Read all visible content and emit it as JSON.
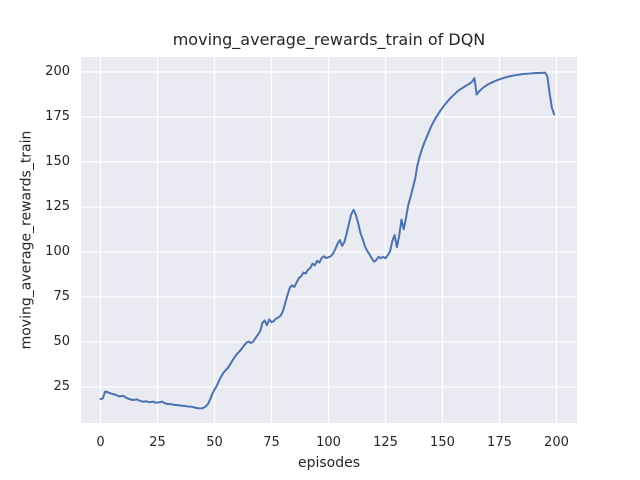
{
  "chart_data": {
    "type": "line",
    "title": "moving_average_rewards_train of DQN",
    "xlabel": "episodes",
    "ylabel": "moving_average_rewards_train",
    "xlim": [
      -8.55,
      209.0
    ],
    "ylim": [
      5.0,
      208.3
    ],
    "x_ticks": [
      0,
      25,
      50,
      75,
      100,
      125,
      150,
      175,
      200
    ],
    "y_ticks": [
      25,
      50,
      75,
      100,
      125,
      150,
      175,
      200
    ],
    "grid": true,
    "legend": "none",
    "style": {
      "axes_background": "#EAEAF2",
      "grid_color": "#FFFFFF",
      "line_color": "#4C72B0",
      "text_color": "#262626",
      "line_width": 2
    },
    "series": [
      {
        "name": "DQN",
        "x_start": 0,
        "x_step": 1,
        "values": [
          18.3,
          18.6,
          22.4,
          22.2,
          21.6,
          21.2,
          20.9,
          20.5,
          19.8,
          19.9,
          20.1,
          19.2,
          18.6,
          18.2,
          17.8,
          17.9,
          18.1,
          17.5,
          17.0,
          16.8,
          17.1,
          16.6,
          16.6,
          16.9,
          16.3,
          16.4,
          16.5,
          16.9,
          16.1,
          15.7,
          15.5,
          15.5,
          15.1,
          15.0,
          14.9,
          14.7,
          14.5,
          14.5,
          14.2,
          14.1,
          14.0,
          13.7,
          13.4,
          13.2,
          13.1,
          13.3,
          14.0,
          15.3,
          17.8,
          21.0,
          23.6,
          25.6,
          28.5,
          31.0,
          33.0,
          34.5,
          35.8,
          37.8,
          40.0,
          41.8,
          43.5,
          44.8,
          46.4,
          48.1,
          49.6,
          50.2,
          49.4,
          50.2,
          52.2,
          54.0,
          55.8,
          60.5,
          62.0,
          59.3,
          62.6,
          61.0,
          61.6,
          63.0,
          63.6,
          64.6,
          67.0,
          71.5,
          76.0,
          80.0,
          81.5,
          80.6,
          83.0,
          85.5,
          86.5,
          88.6,
          88.0,
          90.1,
          91.1,
          93.5,
          92.6,
          95.1,
          94.1,
          96.6,
          97.6,
          96.6,
          97.1,
          97.6,
          99.1,
          101.6,
          104.6,
          106.6,
          103.4,
          105.6,
          110.5,
          116.0,
          121.0,
          123.4,
          120.6,
          116.1,
          110.6,
          107.1,
          103.1,
          100.6,
          98.6,
          96.4,
          94.6,
          95.6,
          97.4,
          96.5,
          97.3,
          96.5,
          98.3,
          100.3,
          106.1,
          109.4,
          102.6,
          109.0,
          118.0,
          112.6,
          119.0,
          126.1,
          130.6,
          135.6,
          140.6,
          148.1,
          153.1,
          157.1,
          160.6,
          163.6,
          166.6,
          169.6,
          172.1,
          174.4,
          176.4,
          178.3,
          180.1,
          181.8,
          183.3,
          184.8,
          186.1,
          187.3,
          188.5,
          189.6,
          190.5,
          191.3,
          192.1,
          192.9,
          193.6,
          194.6,
          196.6,
          187.5,
          189.1,
          190.3,
          191.4,
          192.3,
          193.1,
          193.7,
          194.3,
          194.9,
          195.4,
          195.9,
          196.3,
          196.7,
          197.1,
          197.4,
          197.7,
          198.0,
          198.2,
          198.4,
          198.6,
          198.8,
          198.9,
          199.0,
          199.1,
          199.2,
          199.3,
          199.4,
          199.4,
          199.5,
          199.5,
          199.6,
          197.6,
          188.0,
          180.0,
          176.4
        ]
      }
    ]
  }
}
